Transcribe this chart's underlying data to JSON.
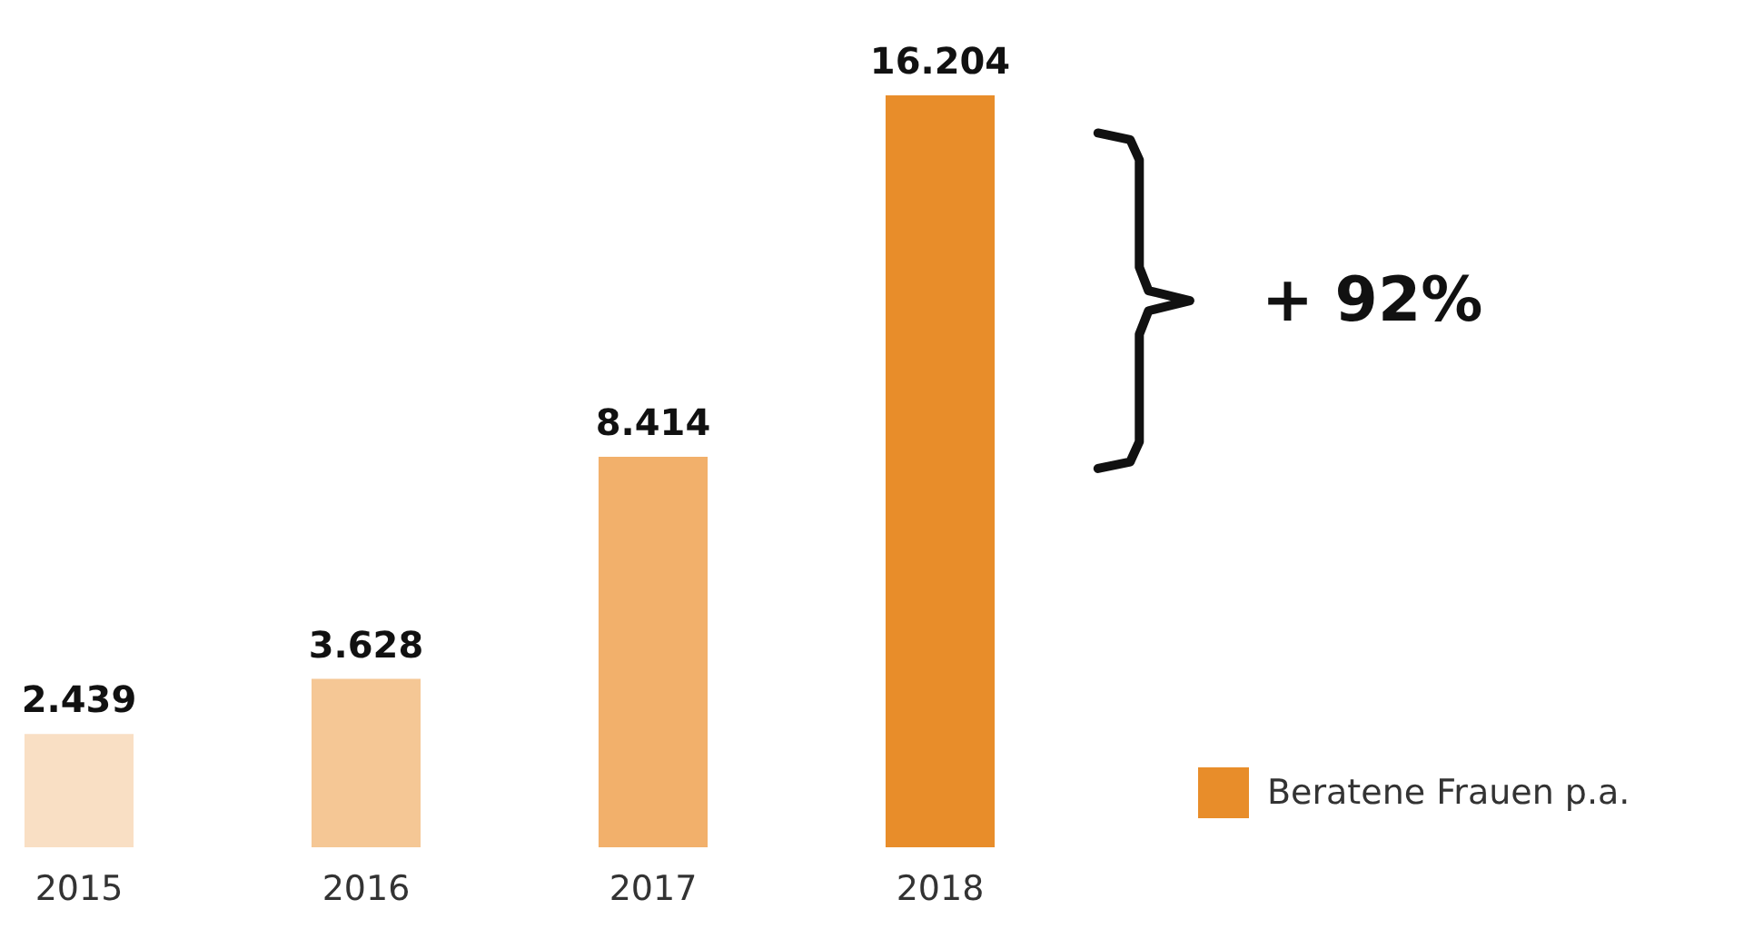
{
  "chart_data": {
    "type": "bar",
    "categories": [
      "2015",
      "2016",
      "2017",
      "2018"
    ],
    "series": [
      {
        "name": "Beratene Frauen p.a.",
        "color": "#e88d2a",
        "colors": [
          "#f9dfc4",
          "#f5c795",
          "#f2b06b",
          "#e88d2a"
        ],
        "values": [
          2439,
          3628,
          8414,
          16204
        ],
        "value_labels": [
          "2.439",
          "3.628",
          "8.414",
          "16.204"
        ]
      }
    ],
    "annotations": [
      "+ 92%"
    ],
    "legend": "right",
    "grid": false
  }
}
